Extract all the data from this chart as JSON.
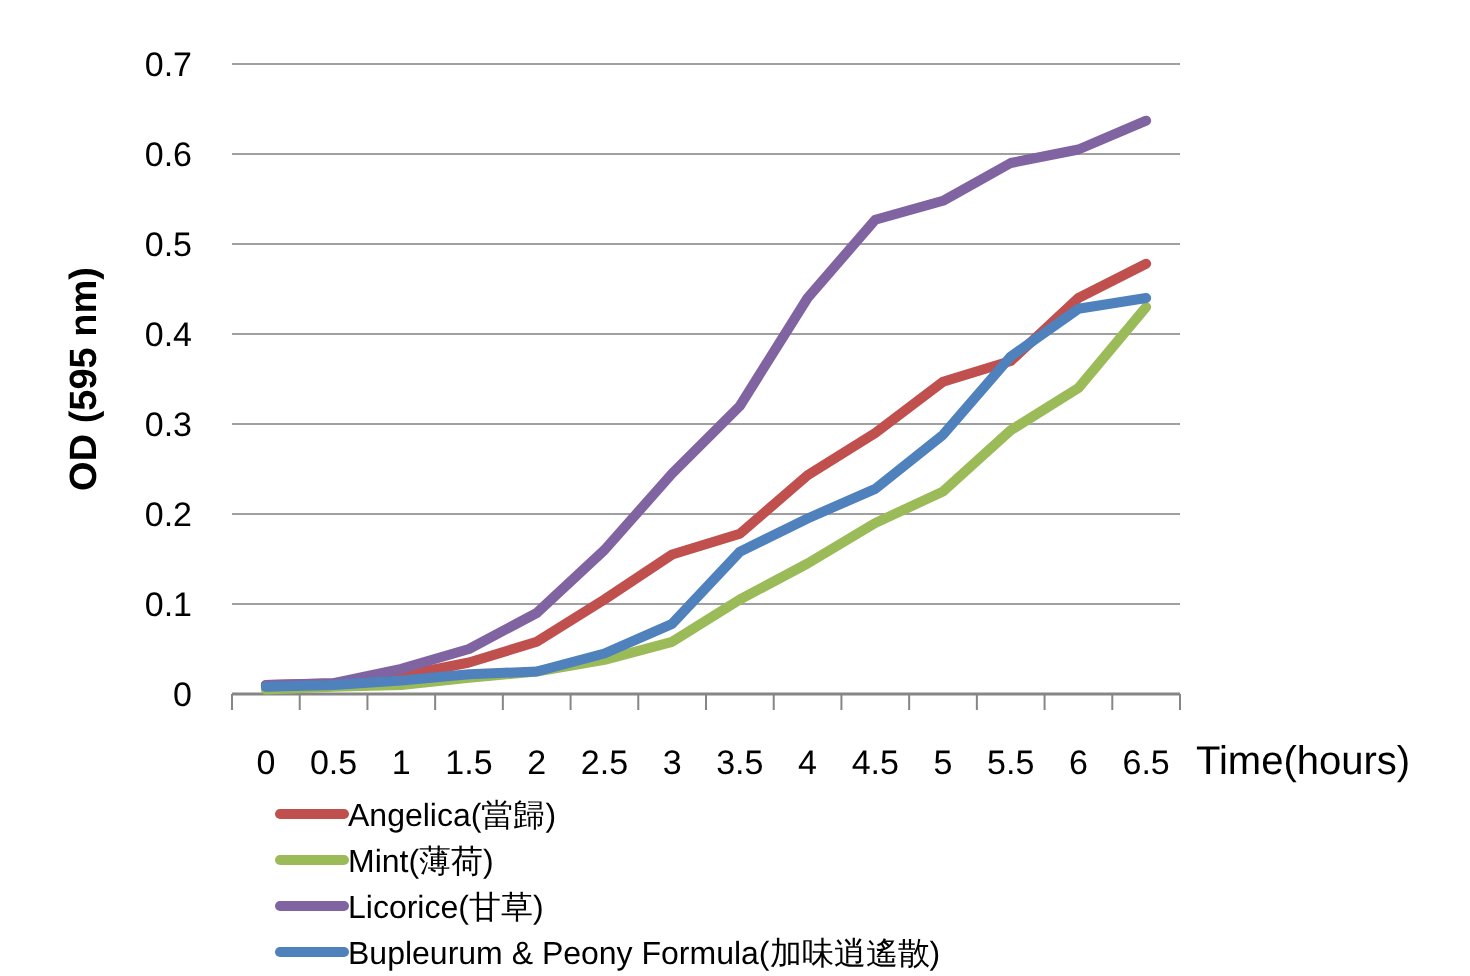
{
  "chart_data": {
    "type": "line",
    "xlabel": "Time(hours)",
    "ylabel": "OD (595 nm)",
    "categories": [
      "0",
      "0.5",
      "1",
      "1.5",
      "2",
      "2.5",
      "3",
      "3.5",
      "4",
      "4.5",
      "5",
      "5.5",
      "6",
      "6.5"
    ],
    "ylim": [
      0,
      0.7
    ],
    "yticks": [
      {
        "value": 0,
        "label": "0"
      },
      0.1,
      0.2,
      0.3,
      0.4,
      0.5,
      0.6,
      0.7
    ],
    "grid": "y",
    "legend": "bottom",
    "series": [
      {
        "name": "Angelica(當歸)",
        "color": "#c0504d",
        "values": [
          0.01,
          0.012,
          0.02,
          0.035,
          0.058,
          0.105,
          0.155,
          0.178,
          0.243,
          0.29,
          0.347,
          0.37,
          0.44,
          0.478
        ]
      },
      {
        "name": "Mint(薄荷)",
        "color": "#9bbb59",
        "values": [
          0.005,
          0.008,
          0.01,
          0.018,
          0.025,
          0.038,
          0.058,
          0.105,
          0.145,
          0.19,
          0.225,
          0.293,
          0.34,
          0.43
        ]
      },
      {
        "name": "Licorice(甘草)",
        "color": "#8064a2",
        "values": [
          0.01,
          0.012,
          0.028,
          0.05,
          0.09,
          0.16,
          0.245,
          0.32,
          0.44,
          0.527,
          0.548,
          0.59,
          0.605,
          0.637
        ]
      },
      {
        "name": "Bupleurum & Peony Formula(加味逍遙散)",
        "color": "#4f81bd",
        "values": [
          0.008,
          0.01,
          0.015,
          0.022,
          0.025,
          0.045,
          0.078,
          0.158,
          0.195,
          0.228,
          0.288,
          0.375,
          0.428,
          0.44
        ]
      }
    ]
  }
}
